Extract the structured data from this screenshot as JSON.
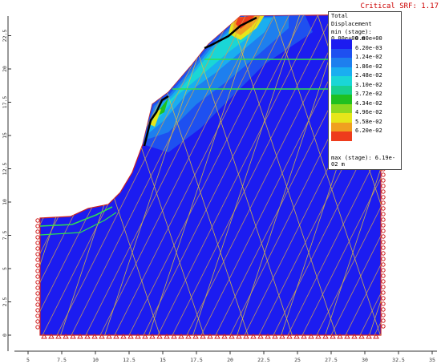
{
  "status": {
    "critical_srf": "Critical SRF: 1.17"
  },
  "legend": {
    "title_line1": "Total",
    "title_line2": "Displacement",
    "min_label": "min (stage): 0.00e+00 m",
    "max_label": "max (stage): 6.19e-02 m",
    "levels": [
      "0.00e+00",
      "6.20e-03",
      "1.24e-02",
      "1.86e-02",
      "2.48e-02",
      "3.10e-02",
      "3.72e-02",
      "4.34e-02",
      "4.96e-02",
      "5.58e-02",
      "6.20e-02"
    ],
    "colors": [
      "#1c1cf0",
      "#1e50f0",
      "#1e7fee",
      "#1aaef0",
      "#1ad6d6",
      "#18d090",
      "#20c020",
      "#8cd820",
      "#e6e61a",
      "#f0a020",
      "#ee3c1c"
    ]
  },
  "axes": {
    "x_ticks": [
      "5",
      "7.5",
      "10",
      "12.5",
      "15",
      "17.5",
      "20",
      "22.5",
      "25",
      "27.5",
      "30",
      "32.5",
      "35"
    ],
    "y_ticks": [
      "0",
      "2.5",
      "5",
      "7.5",
      "10",
      "12.5",
      "15",
      "17.5",
      "20",
      "22.5"
    ]
  }
}
